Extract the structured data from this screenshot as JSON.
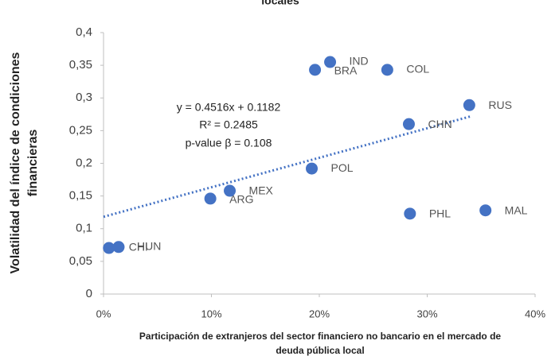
{
  "chart_data": {
    "type": "scatter",
    "title": "locales",
    "x_label": [
      "Participación de extranjeros del sector financiero no bancario en el mercado de",
      "deuda pública local"
    ],
    "y_label": [
      "Volatilidad del índice de condiciones",
      "financieras"
    ],
    "color": "#4472c4",
    "labels": [
      "CHI",
      "HUN",
      "ARG",
      "MEX",
      "POL",
      "BRA",
      "IND",
      "COL",
      "CHN",
      "PHL",
      "RUS",
      "MAL"
    ],
    "x": [
      0.5,
      1.4,
      9.9,
      11.7,
      19.3,
      19.6,
      21.0,
      26.3,
      28.3,
      28.4,
      33.9,
      35.4
    ],
    "values": [
      0.0705,
      0.072,
      0.146,
      0.158,
      0.192,
      0.343,
      0.355,
      0.343,
      0.26,
      0.123,
      0.289,
      0.128
    ],
    "trendline": {
      "x": [
        0,
        34
      ],
      "values": [
        0.1182,
        0.2717
      ]
    },
    "annotations": [
      "y = 0.4516x + 0.1182",
      "R² = 0.2485",
      "p-value β = 0.108"
    ],
    "xlim": [
      0,
      40
    ],
    "xticks": [
      {
        "value": 0,
        "label": "0%"
      },
      {
        "value": 10,
        "label": "10%"
      },
      {
        "value": 20,
        "label": "20%"
      },
      {
        "value": 30,
        "label": "30%"
      },
      {
        "value": 40,
        "label": "40%"
      }
    ],
    "ylim": [
      0,
      0.4
    ],
    "yticks": [
      {
        "value": 0,
        "label": "0"
      },
      {
        "value": 0.05,
        "label": "0,05"
      },
      {
        "value": 0.1,
        "label": "0,1"
      },
      {
        "value": 0.15,
        "label": "0,15"
      },
      {
        "value": 0.2,
        "label": "0,2"
      },
      {
        "value": 0.25,
        "label": "0,25"
      },
      {
        "value": 0.3,
        "label": "0,3"
      },
      {
        "value": 0.35,
        "label": "0,35"
      },
      {
        "value": 0.4,
        "label": "0,4"
      }
    ],
    "grid": false
  }
}
